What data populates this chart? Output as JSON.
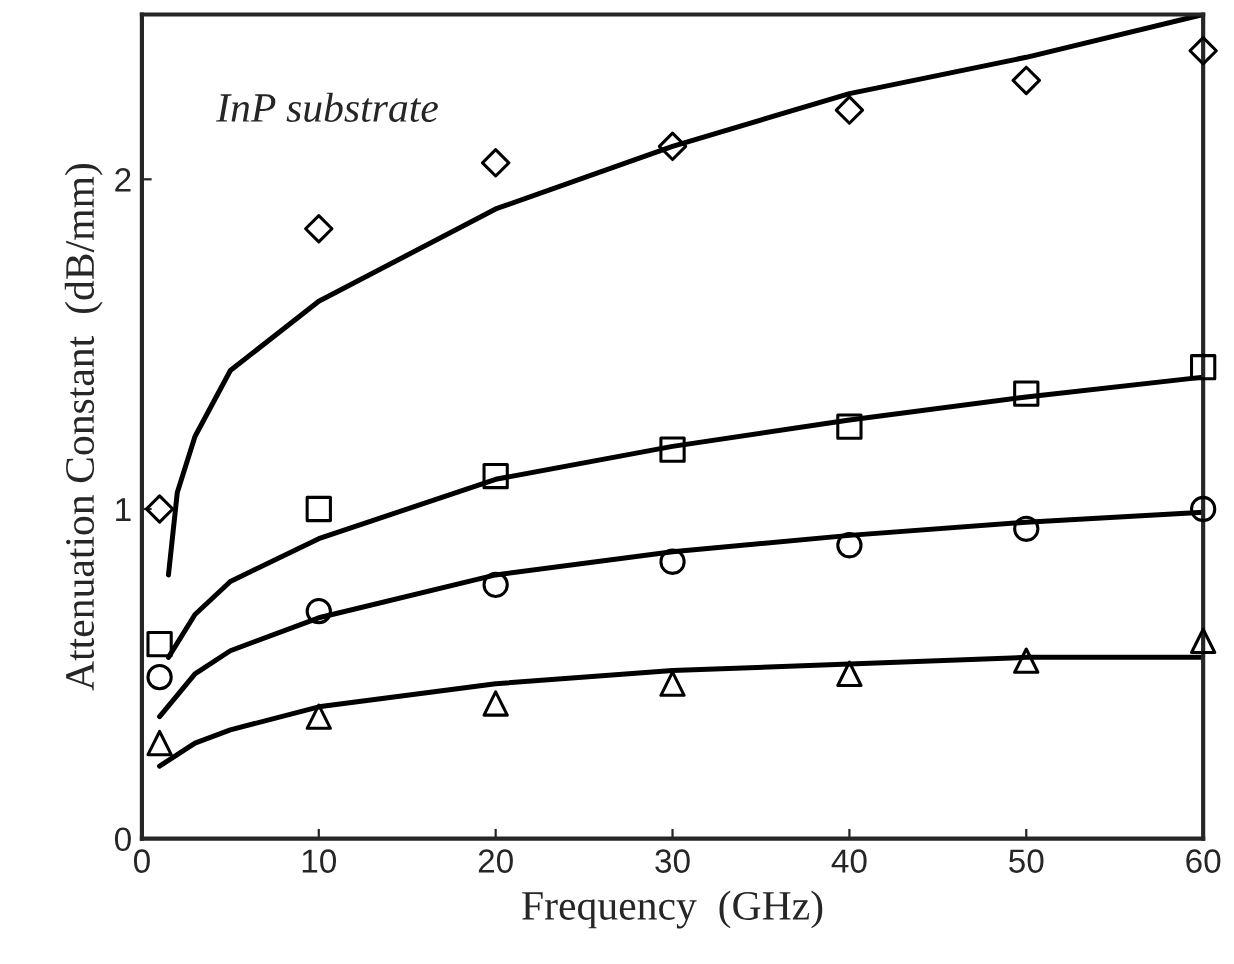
{
  "chart_data": {
    "type": "scatter",
    "xlabel": "Frequency  (GHz)",
    "ylabel": "Attenuation Constant  (dB/mm)",
    "annotations": [
      "InP substrate"
    ],
    "x": [
      1,
      10,
      20,
      30,
      40,
      50,
      60
    ],
    "series": [
      {
        "marker": "diamond",
        "color": "#000000",
        "values": [
          1.0,
          1.85,
          2.05,
          2.1,
          2.21,
          2.3,
          2.39
        ]
      },
      {
        "marker": "square",
        "color": "#000000",
        "values": [
          0.59,
          1.0,
          1.1,
          1.18,
          1.25,
          1.35,
          1.43
        ]
      },
      {
        "marker": "circle",
        "color": "#000000",
        "values": [
          0.49,
          0.69,
          0.77,
          0.84,
          0.89,
          0.94,
          1.0
        ]
      },
      {
        "marker": "triangle",
        "color": "#000000",
        "values": [
          0.29,
          0.37,
          0.41,
          0.47,
          0.5,
          0.54,
          0.6
        ]
      },
      {
        "type": "line",
        "color": "#000000",
        "x": [
          1.5,
          2,
          3,
          5,
          10,
          20,
          30,
          40,
          50,
          60
        ],
        "values": [
          0.8,
          1.05,
          1.22,
          1.42,
          1.63,
          1.91,
          2.1,
          2.26,
          2.37,
          2.5
        ]
      },
      {
        "type": "line",
        "color": "#000000",
        "x": [
          1.5,
          3,
          5,
          10,
          20,
          30,
          40,
          50,
          60
        ],
        "values": [
          0.55,
          0.68,
          0.78,
          0.91,
          1.09,
          1.19,
          1.27,
          1.34,
          1.4
        ]
      },
      {
        "type": "line",
        "color": "#000000",
        "x": [
          1,
          3,
          5,
          10,
          20,
          30,
          40,
          50,
          60
        ],
        "values": [
          0.37,
          0.5,
          0.57,
          0.67,
          0.8,
          0.87,
          0.92,
          0.96,
          0.99
        ]
      },
      {
        "type": "line",
        "color": "#000000",
        "x": [
          1,
          3,
          5,
          10,
          20,
          30,
          40,
          50,
          60
        ],
        "values": [
          0.22,
          0.29,
          0.33,
          0.4,
          0.47,
          0.51,
          0.53,
          0.55,
          0.55
        ]
      }
    ],
    "xlim": [
      0,
      60
    ],
    "xticks": [
      0,
      10,
      20,
      30,
      40,
      50,
      60
    ],
    "ylim": [
      0,
      2.5
    ],
    "yticks": [
      0,
      1,
      2
    ],
    "grid": false,
    "legend": false
  }
}
